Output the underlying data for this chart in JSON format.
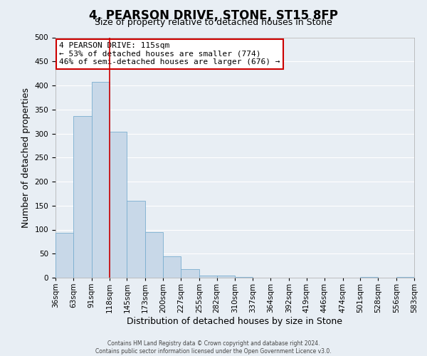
{
  "title": "4, PEARSON DRIVE, STONE, ST15 8FP",
  "subtitle": "Size of property relative to detached houses in Stone",
  "xlabel": "Distribution of detached houses by size in Stone",
  "ylabel": "Number of detached properties",
  "bar_color": "#c8d8e8",
  "bar_edge_color": "#7aaed0",
  "background_color": "#e8eef4",
  "annotation_box_text": "4 PEARSON DRIVE: 115sqm\n← 53% of detached houses are smaller (774)\n46% of semi-detached houses are larger (676) →",
  "annotation_box_color": "#ffffff",
  "annotation_box_edge_color": "#cc0000",
  "vline_x": 118,
  "vline_color": "#cc0000",
  "bins": [
    36,
    63,
    91,
    118,
    145,
    173,
    200,
    227,
    255,
    282,
    310,
    337,
    364,
    392,
    419,
    446,
    474,
    501,
    528,
    556,
    583
  ],
  "bin_labels": [
    "36sqm",
    "63sqm",
    "91sqm",
    "118sqm",
    "145sqm",
    "173sqm",
    "200sqm",
    "227sqm",
    "255sqm",
    "282sqm",
    "310sqm",
    "337sqm",
    "364sqm",
    "392sqm",
    "419sqm",
    "446sqm",
    "474sqm",
    "501sqm",
    "528sqm",
    "556sqm",
    "583sqm"
  ],
  "bar_heights": [
    93,
    336,
    408,
    304,
    160,
    95,
    45,
    18,
    5,
    4,
    2,
    0,
    0,
    0,
    0,
    0,
    0,
    2,
    0,
    2
  ],
  "ylim": [
    0,
    500
  ],
  "yticks": [
    0,
    50,
    100,
    150,
    200,
    250,
    300,
    350,
    400,
    450,
    500
  ],
  "footer_line1": "Contains HM Land Registry data © Crown copyright and database right 2024.",
  "footer_line2": "Contains public sector information licensed under the Open Government Licence v3.0.",
  "title_fontsize": 12,
  "subtitle_fontsize": 9,
  "xlabel_fontsize": 9,
  "ylabel_fontsize": 9,
  "tick_fontsize": 7.5,
  "annotation_fontsize": 8,
  "footer_fontsize": 5.5
}
